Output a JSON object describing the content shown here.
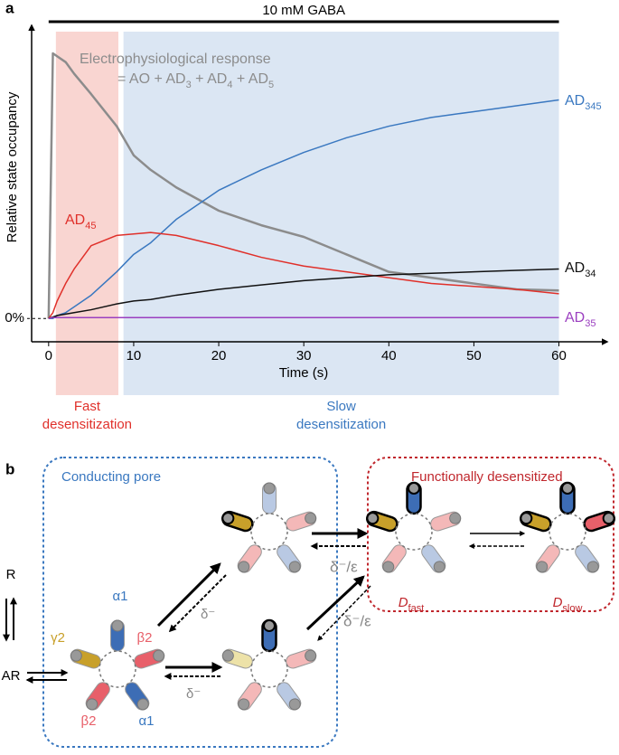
{
  "panel_labels": [
    "a",
    "b"
  ],
  "chart_data": {
    "type": "line",
    "xlabel": "Time (s)",
    "ylabel": "Relative state occupancy",
    "x": [
      0,
      0.5,
      1,
      2,
      3,
      5,
      8,
      10,
      12,
      15,
      20,
      25,
      30,
      35,
      40,
      45,
      50,
      55,
      60
    ],
    "series": [
      {
        "name": "Electrophysiological response",
        "color": "#8c8c8c",
        "values": [
          0,
          91,
          90,
          88,
          84,
          77,
          66,
          56,
          51,
          45,
          37,
          32,
          28,
          22,
          16,
          14,
          12,
          10,
          9.6
        ]
      },
      {
        "name": "AD345",
        "color": "#3a78c0",
        "values": [
          0,
          0,
          1,
          2,
          4,
          8,
          16,
          22,
          26,
          34,
          44,
          51,
          57,
          62,
          66,
          69,
          71,
          73,
          75
        ]
      },
      {
        "name": "AD45",
        "color": "#e0302a",
        "values": [
          0,
          2,
          6,
          12,
          17,
          25,
          28.5,
          29,
          29.5,
          28.5,
          25,
          21,
          18,
          16,
          14,
          12,
          11,
          10,
          8.5
        ]
      },
      {
        "name": "AD34",
        "color": "#111111",
        "values": [
          0,
          0.5,
          1,
          1.5,
          2,
          3,
          5,
          6,
          6.5,
          8,
          10,
          11.5,
          13,
          14,
          15,
          15.5,
          16,
          16.5,
          17
        ]
      },
      {
        "name": "AD35",
        "color": "#9b3fc0",
        "values": [
          0,
          0.3,
          0.3,
          0.3,
          0.3,
          0.3,
          0.3,
          0.3,
          0.3,
          0.3,
          0.3,
          0.3,
          0.3,
          0.3,
          0.3,
          0.3,
          0.3,
          0.3,
          0.3
        ]
      }
    ],
    "annotation": "= AO + AD3 + AD4 + AD5",
    "xlim": [
      -2,
      66
    ],
    "xticks": [
      0,
      10,
      20,
      30,
      40,
      50,
      60
    ],
    "ylim": [
      -8,
      100
    ],
    "yticks": [
      {
        "value": 0,
        "label": "0%"
      }
    ],
    "stimulus": {
      "label": "10 mM GABA",
      "xrange": [
        0,
        60
      ]
    },
    "regions": [
      {
        "label": [
          "Fast",
          "desensitization"
        ],
        "xrange": [
          0.85,
          8.2
        ],
        "color": "#f9d5d1",
        "text_color": "#e0302a"
      },
      {
        "label": [
          "Slow",
          "desensitization"
        ],
        "xrange": [
          8.8,
          60
        ],
        "color": "#dbe6f3",
        "text_color": "#3a78c0"
      }
    ]
  },
  "diagram": {
    "groups": [
      "Conducting pore",
      "Functionally desensitized"
    ],
    "states": [
      "R",
      "AR"
    ],
    "subunits": [
      "α1",
      "β2",
      "γ2",
      "β2",
      "α1"
    ],
    "rates": [
      "δ⁻",
      "δ⁻",
      "δ⁻/ε",
      "δ⁻/ε"
    ],
    "desensitized": [
      "Dfast",
      "Dslow"
    ]
  }
}
